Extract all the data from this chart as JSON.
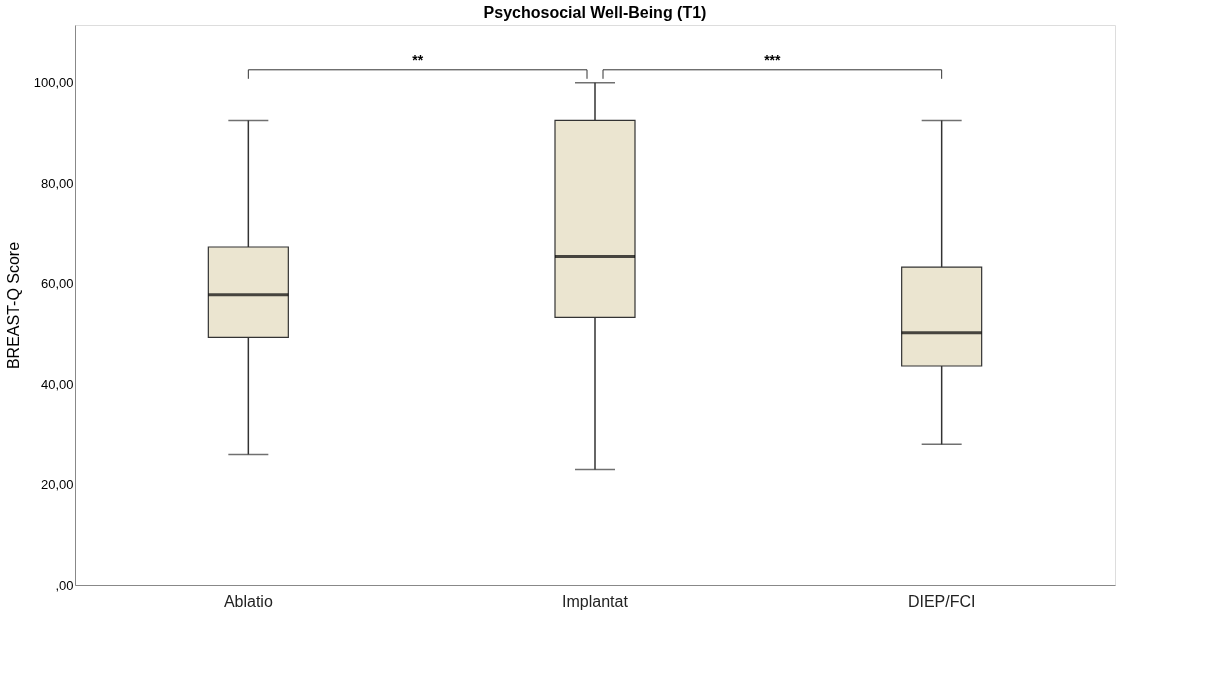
{
  "chart_data": {
    "type": "box",
    "title": "Psychosocial Well-Being (T1)",
    "ylabel": "BREAST-Q Score",
    "categories": [
      "Ablatio",
      "Implantat",
      "DIEP/FCI"
    ],
    "boxes": [
      {
        "low": 26,
        "q1": 49.3,
        "median": 57.8,
        "q3": 67.3,
        "high": 92.5
      },
      {
        "low": 23,
        "q1": 53.3,
        "median": 65.4,
        "q3": 92.5,
        "high": 100
      },
      {
        "low": 28,
        "q1": 43.6,
        "median": 50.2,
        "q3": 63.3,
        "high": 92.5
      }
    ],
    "color": "#ebe5d0",
    "ylim": [
      0,
      111.5
    ],
    "yticks": [
      {
        "value": 0,
        "label": ",00"
      },
      {
        "value": 20,
        "label": "20,00"
      },
      {
        "value": 40,
        "label": "40,00"
      },
      {
        "value": 60,
        "label": "60,00"
      },
      {
        "value": 80,
        "label": "80,00"
      },
      {
        "value": 100,
        "label": "100,00"
      }
    ],
    "annotations": [
      "**",
      "***"
    ],
    "grid": false
  }
}
